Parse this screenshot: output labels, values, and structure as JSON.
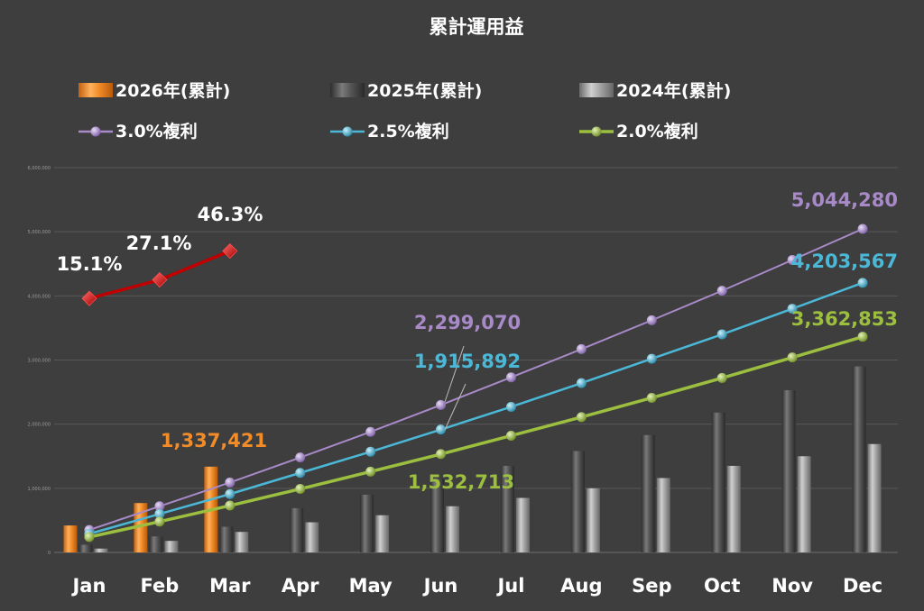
{
  "chart_data": {
    "type": "bar",
    "title": "累計運用益",
    "categories": [
      "Jan",
      "Feb",
      "Mar",
      "Apr",
      "May",
      "Jun",
      "Jul",
      "Aug",
      "Sep",
      "Oct",
      "Nov",
      "Dec"
    ],
    "ylim": [
      0,
      6000000
    ],
    "y_ticks": [
      "0",
      "1,000,000",
      "2,000,000",
      "3,000,000",
      "4,000,000",
      "5,000,000",
      "6,000,000"
    ],
    "grid": true,
    "legend_position": "top",
    "bar_series": [
      {
        "name": "2026年(累計)",
        "color": "#f28c28",
        "values": [
          420000,
          770000,
          1337421,
          null,
          null,
          null,
          null,
          null,
          null,
          null,
          null,
          null
        ]
      },
      {
        "name": "2025年(累計)",
        "color": "#5a5a5a",
        "values": [
          120000,
          250000,
          400000,
          690000,
          900000,
          1150000,
          1350000,
          1580000,
          1830000,
          2180000,
          2530000,
          2900000
        ]
      },
      {
        "name": "2024年(累計)",
        "color": "#9a9a9a",
        "values": [
          60000,
          180000,
          320000,
          470000,
          580000,
          720000,
          850000,
          1000000,
          1160000,
          1350000,
          1500000,
          1690000
        ]
      }
    ],
    "line_series": [
      {
        "name": "3.0%複利",
        "color": "#a98ac9",
        "marker": "circle",
        "values": [
          350000,
          720000,
          1090000,
          1480000,
          1880000,
          2299070,
          2730000,
          3170000,
          3620000,
          4080000,
          4560000,
          5044280
        ]
      },
      {
        "name": "2.5%複利",
        "color": "#4bb8d8",
        "marker": "circle",
        "values": [
          290000,
          600000,
          910000,
          1240000,
          1570000,
          1915892,
          2270000,
          2640000,
          3020000,
          3400000,
          3800000,
          4203567
        ]
      },
      {
        "name": "2.0%複利",
        "color": "#9cbf3f",
        "marker": "circle",
        "values": [
          240000,
          480000,
          730000,
          990000,
          1260000,
          1532713,
          1820000,
          2110000,
          2410000,
          2720000,
          3040000,
          3362853
        ]
      },
      {
        "name": "",
        "color": "#c00000",
        "marker": "diamond",
        "values": [
          3960000,
          4250000,
          4700000,
          null,
          null,
          null,
          null,
          null,
          null,
          null,
          null,
          null
        ]
      }
    ],
    "annotations": [
      {
        "text": "15.1%",
        "color": "#ffffff",
        "anchor": "ratio",
        "index": 0
      },
      {
        "text": "27.1%",
        "color": "#ffffff",
        "anchor": "ratio",
        "index": 1
      },
      {
        "text": "46.3%",
        "color": "#ffffff",
        "anchor": "ratio",
        "index": 2
      },
      {
        "text": "1,337,421",
        "color": "#f28c28",
        "anchor": "bar2026",
        "index": 2
      },
      {
        "text": "2,299,070",
        "color": "#a98ac9",
        "anchor": "line3",
        "index": 5
      },
      {
        "text": "1,915,892",
        "color": "#4bb8d8",
        "anchor": "line25",
        "index": 5
      },
      {
        "text": "1,532,713",
        "color": "#9cbf3f",
        "anchor": "line2",
        "index": 5
      },
      {
        "text": "5,044,280",
        "color": "#a98ac9",
        "anchor": "line3",
        "index": 11
      },
      {
        "text": "4,203,567",
        "color": "#4bb8d8",
        "anchor": "line25",
        "index": 11
      },
      {
        "text": "3,362,853",
        "color": "#9cbf3f",
        "anchor": "line2",
        "index": 11
      }
    ]
  }
}
